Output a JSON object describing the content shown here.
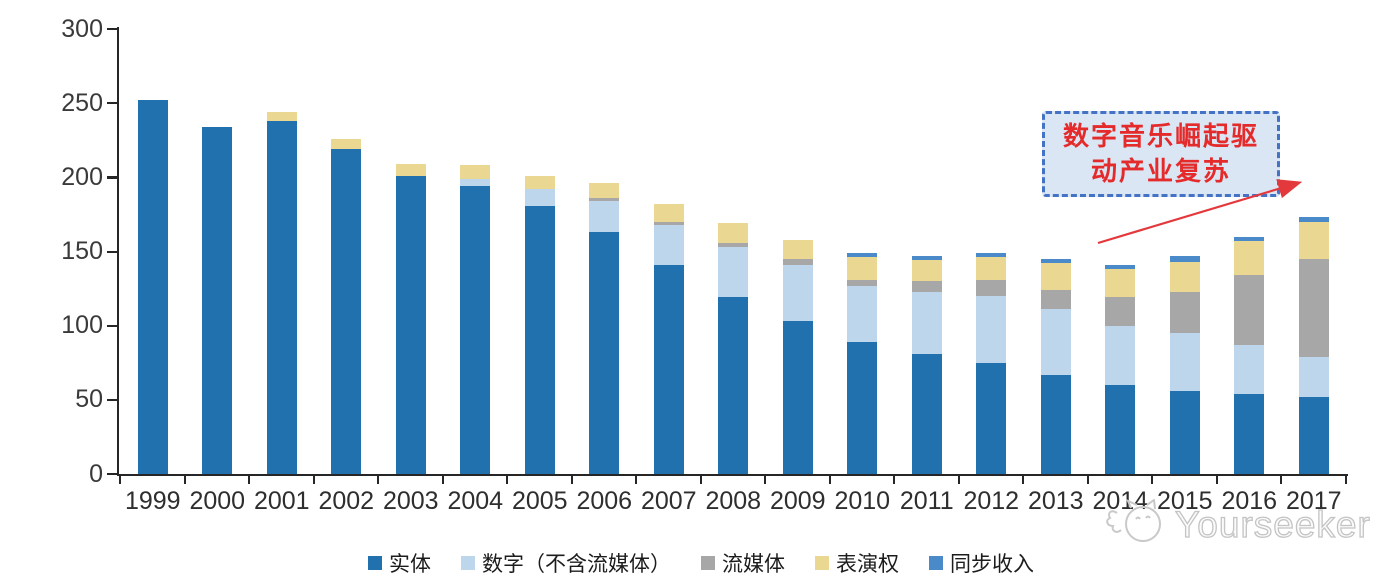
{
  "chart_data": {
    "type": "bar",
    "stacked": true,
    "title": "",
    "xlabel": "",
    "ylabel": "",
    "ylim": [
      0,
      300
    ],
    "yticks": [
      0,
      50,
      100,
      150,
      200,
      250,
      300
    ],
    "grid": false,
    "legend_position": "bottom",
    "categories": [
      "1999",
      "2000",
      "2001",
      "2002",
      "2003",
      "2004",
      "2005",
      "2006",
      "2007",
      "2008",
      "2009",
      "2010",
      "2011",
      "2012",
      "2013",
      "2014",
      "2015",
      "2016",
      "2017"
    ],
    "series": [
      {
        "name": "实体",
        "color": "#2171ae",
        "values": [
          252,
          234,
          238,
          219,
          201,
          194,
          181,
          163,
          141,
          119,
          103,
          89,
          81,
          75,
          67,
          60,
          56,
          54,
          52
        ]
      },
      {
        "name": "数字（不含流媒体）",
        "color": "#bdd6ec",
        "values": [
          0,
          0,
          0,
          0,
          0,
          5,
          11,
          21,
          27,
          34,
          38,
          38,
          42,
          45,
          44,
          40,
          39,
          33,
          27
        ]
      },
      {
        "name": "流媒体",
        "color": "#a7a7a7",
        "values": [
          0,
          0,
          0,
          0,
          0,
          0,
          0,
          2,
          2,
          3,
          4,
          4,
          7,
          11,
          13,
          19,
          28,
          47,
          66
        ]
      },
      {
        "name": "表演权",
        "color": "#ead792",
        "values": [
          0,
          0,
          6,
          7,
          8,
          9,
          9,
          10,
          12,
          13,
          13,
          15,
          14,
          15,
          18,
          19,
          20,
          23,
          25
        ]
      },
      {
        "name": "同步收入",
        "color": "#4a8ac9",
        "values": [
          0,
          0,
          0,
          0,
          0,
          0,
          0,
          0,
          0,
          0,
          0,
          3,
          3,
          3,
          3,
          3,
          4,
          3,
          3
        ]
      }
    ],
    "annotation": "数字音乐崛起驱动产业复苏"
  },
  "annotation": {
    "line1": "数字音乐崛起驱",
    "line2": "动产业复苏",
    "text_color": "#e42a2a",
    "box_border_color": "#4472c4",
    "box_fill_color": "#dae6f3",
    "arrow_color": "#e4393c"
  },
  "watermark": {
    "text": "Yourseeker"
  }
}
